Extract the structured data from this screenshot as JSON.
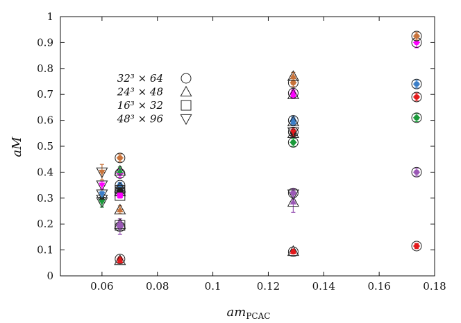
{
  "chart_data": {
    "type": "scatter",
    "title": "",
    "xlabel": "am",
    "xlabel_sub": "PCAC",
    "ylabel": "aM",
    "xlim": [
      0.045,
      0.18
    ],
    "ylim": [
      0,
      1
    ],
    "x_ticks": [
      "0.06",
      "0.08",
      "0.1",
      "0.12",
      "0.14",
      "0.16",
      "0.18"
    ],
    "y_ticks": [
      "0",
      "0.1",
      "0.2",
      "0.3",
      "0.4",
      "0.5",
      "0.6",
      "0.7",
      "0.8",
      "0.9",
      "1"
    ],
    "grid": false,
    "legend_position": "upper-left inside",
    "legend": [
      {
        "label": "32³ × 64",
        "marker": "circle"
      },
      {
        "label": "24³ × 48",
        "marker": "triangle-up"
      },
      {
        "label": "16³ × 32",
        "marker": "square"
      },
      {
        "label": "48³ × 96",
        "marker": "triangle-down"
      }
    ],
    "colors": {
      "red": "#e41a1c",
      "orange": "#c8733a",
      "magenta": "#ff00ff",
      "green": "#1a9a3a",
      "blue": "#3b7ec8",
      "purple": "#9b59b6",
      "dark": "#222222"
    },
    "points": [
      {
        "x": 0.0665,
        "y": 0.065,
        "marker": "circle",
        "color": "red",
        "err": 0.008
      },
      {
        "x": 0.0665,
        "y": 0.19,
        "marker": "circle",
        "color": "purple",
        "err": 0.03
      },
      {
        "x": 0.0665,
        "y": 0.33,
        "marker": "circle",
        "color": "dark",
        "err": 0.01
      },
      {
        "x": 0.0665,
        "y": 0.35,
        "marker": "circle",
        "color": "blue",
        "err": 0.01
      },
      {
        "x": 0.0665,
        "y": 0.395,
        "marker": "circle",
        "color": "magenta",
        "err": 0.015
      },
      {
        "x": 0.0665,
        "y": 0.455,
        "marker": "circle",
        "color": "orange",
        "err": 0.015
      },
      {
        "x": 0.0665,
        "y": 0.06,
        "marker": "triangle-up",
        "color": "red",
        "err": 0.01
      },
      {
        "x": 0.0665,
        "y": 0.2,
        "marker": "triangle-up",
        "color": "purple",
        "err": 0.015
      },
      {
        "x": 0.0665,
        "y": 0.255,
        "marker": "triangle-up",
        "color": "orange",
        "err": 0.015
      },
      {
        "x": 0.0665,
        "y": 0.325,
        "marker": "triangle-up",
        "color": "dark",
        "err": 0.01
      },
      {
        "x": 0.0665,
        "y": 0.34,
        "marker": "triangle-up",
        "color": "blue",
        "err": 0.01
      },
      {
        "x": 0.0665,
        "y": 0.405,
        "marker": "triangle-up",
        "color": "green",
        "err": 0.015
      },
      {
        "x": 0.0665,
        "y": 0.195,
        "marker": "square",
        "color": "purple",
        "err": 0.015
      },
      {
        "x": 0.0665,
        "y": 0.33,
        "marker": "square",
        "color": "dark",
        "err": 0.01
      },
      {
        "x": 0.0665,
        "y": 0.31,
        "marker": "square",
        "color": "magenta",
        "err": 0.01
      },
      {
        "x": 0.06,
        "y": 0.295,
        "marker": "triangle-down",
        "color": "dark",
        "err": 0.01
      },
      {
        "x": 0.06,
        "y": 0.285,
        "marker": "triangle-down",
        "color": "green",
        "err": 0.02
      },
      {
        "x": 0.06,
        "y": 0.315,
        "marker": "triangle-down",
        "color": "blue",
        "err": 0.01
      },
      {
        "x": 0.06,
        "y": 0.35,
        "marker": "triangle-down",
        "color": "magenta",
        "err": 0.015
      },
      {
        "x": 0.06,
        "y": 0.4,
        "marker": "triangle-down",
        "color": "orange",
        "err": 0.03
      },
      {
        "x": 0.129,
        "y": 0.093,
        "marker": "circle",
        "color": "red",
        "err": 0.008
      },
      {
        "x": 0.129,
        "y": 0.32,
        "marker": "circle",
        "color": "purple",
        "err": 0.015
      },
      {
        "x": 0.129,
        "y": 0.515,
        "marker": "circle",
        "color": "green",
        "err": 0.015
      },
      {
        "x": 0.129,
        "y": 0.555,
        "marker": "circle",
        "color": "dark",
        "err": 0.015
      },
      {
        "x": 0.129,
        "y": 0.6,
        "marker": "circle",
        "color": "blue",
        "err": 0.015
      },
      {
        "x": 0.129,
        "y": 0.705,
        "marker": "circle",
        "color": "magenta",
        "err": 0.015
      },
      {
        "x": 0.129,
        "y": 0.745,
        "marker": "circle",
        "color": "orange",
        "err": 0.015
      },
      {
        "x": 0.129,
        "y": 0.095,
        "marker": "triangle-up",
        "color": "red",
        "err": 0.008
      },
      {
        "x": 0.129,
        "y": 0.285,
        "marker": "triangle-up",
        "color": "purple",
        "err": 0.04
      },
      {
        "x": 0.129,
        "y": 0.55,
        "marker": "triangle-up",
        "color": "dark",
        "err": 0.015
      },
      {
        "x": 0.129,
        "y": 0.595,
        "marker": "triangle-up",
        "color": "blue",
        "err": 0.015
      },
      {
        "x": 0.129,
        "y": 0.7,
        "marker": "triangle-up",
        "color": "magenta",
        "err": 0.015
      },
      {
        "x": 0.129,
        "y": 0.77,
        "marker": "triangle-up",
        "color": "orange",
        "err": 0.015
      },
      {
        "x": 0.129,
        "y": 0.315,
        "marker": "triangle-down",
        "color": "purple",
        "err": 0.02
      },
      {
        "x": 0.129,
        "y": 0.555,
        "marker": "triangle-down",
        "color": "red",
        "err": 0.015
      },
      {
        "x": 0.1735,
        "y": 0.115,
        "marker": "circle",
        "color": "red",
        "err": 0.01
      },
      {
        "x": 0.1735,
        "y": 0.4,
        "marker": "circle",
        "color": "purple",
        "err": 0.015
      },
      {
        "x": 0.1735,
        "y": 0.61,
        "marker": "circle",
        "color": "green",
        "err": 0.015
      },
      {
        "x": 0.1735,
        "y": 0.69,
        "marker": "circle",
        "color": "red",
        "err": 0.015
      },
      {
        "x": 0.1735,
        "y": 0.74,
        "marker": "circle",
        "color": "blue",
        "err": 0.015
      },
      {
        "x": 0.1735,
        "y": 0.9,
        "marker": "circle",
        "color": "magenta",
        "err": 0.02
      },
      {
        "x": 0.1735,
        "y": 0.925,
        "marker": "circle",
        "color": "orange",
        "err": 0.015
      }
    ]
  }
}
